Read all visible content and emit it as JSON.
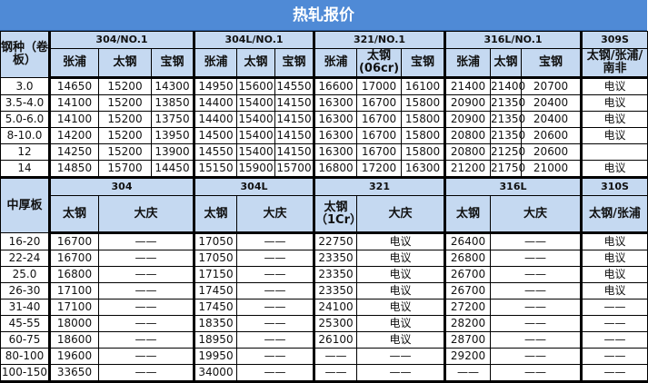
{
  "title": "热轧报价",
  "coil": {
    "corner": "钢种（卷板）",
    "groups": [
      {
        "label": "304/NO.1",
        "span": 3
      },
      {
        "label": "304L/NO.1",
        "span": 3
      },
      {
        "label": "321/NO.1",
        "span": 3
      },
      {
        "label": "316L/NO.1",
        "span": 3
      },
      {
        "label": "309S",
        "span": 1
      }
    ],
    "subheaders": [
      "张浦",
      "太钢",
      "宝钢",
      "张浦",
      "太钢",
      "宝钢",
      "张浦",
      "太钢(06cr)",
      "宝钢",
      "张浦",
      "太钢",
      "宝钢",
      "太钢/张浦/南非"
    ],
    "rows": [
      [
        "3.0",
        "14650",
        "15200",
        "14300",
        "14950",
        "15600",
        "14550",
        "16600",
        "17000",
        "16100",
        "21400",
        "21400",
        "20700",
        "电议"
      ],
      [
        "3.5-4.0",
        "14100",
        "15200",
        "13850",
        "14400",
        "15400",
        "14150",
        "16300",
        "16700",
        "15800",
        "20900",
        "21350",
        "20400",
        "电议"
      ],
      [
        "5.0-6.0",
        "14100",
        "15200",
        "13750",
        "14400",
        "15400",
        "14150",
        "16300",
        "16700",
        "15800",
        "20900",
        "21350",
        "20400",
        "电议"
      ],
      [
        "8-10.0",
        "14200",
        "15200",
        "13950",
        "14500",
        "15400",
        "14150",
        "16300",
        "16700",
        "15800",
        "20800",
        "21350",
        "20600",
        "电议"
      ],
      [
        "12",
        "14250",
        "15200",
        "13900",
        "14550",
        "15400",
        "14150",
        "16300",
        "16700",
        "15800",
        "20800",
        "21250",
        "20600",
        ""
      ],
      [
        "14",
        "14850",
        "15700",
        "14450",
        "15150",
        "15900",
        "15700",
        "16800",
        "17200",
        "16300",
        "21200",
        "21750",
        "21000",
        "电议"
      ]
    ]
  },
  "plate": {
    "corner": "中厚板",
    "groups": [
      {
        "label": "304",
        "span": 3
      },
      {
        "label": "304L",
        "span": 3
      },
      {
        "label": "321",
        "span": 3
      },
      {
        "label": "316L",
        "span": 3
      },
      {
        "label": "310S",
        "span": 1
      }
    ],
    "subheaders": [
      {
        "label": "太钢",
        "span": 1
      },
      {
        "label": "大庆",
        "span": 2
      },
      {
        "label": "太钢",
        "span": 1
      },
      {
        "label": "大庆",
        "span": 2
      },
      {
        "label": "太钢（1Cr）",
        "span": 1
      },
      {
        "label": "大庆",
        "span": 2
      },
      {
        "label": "太钢",
        "span": 1
      },
      {
        "label": "大庆",
        "span": 2
      },
      {
        "label": "太钢/张浦",
        "span": 1
      }
    ],
    "rows": [
      [
        "16-20",
        "16700",
        "——",
        "17050",
        "——",
        "22750",
        "电议",
        "26400",
        "——",
        "电议"
      ],
      [
        "22-24",
        "16700",
        "——",
        "17050",
        "——",
        "23350",
        "电议",
        "26800",
        "——",
        "电议"
      ],
      [
        "25.0",
        "16800",
        "——",
        "17150",
        "——",
        "23350",
        "电议",
        "26700",
        "——",
        "电议"
      ],
      [
        "26-30",
        "17100",
        "——",
        "17450",
        "——",
        "23350",
        "电议",
        "26700",
        "——",
        "电议"
      ],
      [
        "31-40",
        "17100",
        "——",
        "17450",
        "——",
        "24100",
        "电议",
        "27200",
        "——",
        "——"
      ],
      [
        "45-55",
        "18000",
        "——",
        "18350",
        "——",
        "25300",
        "电议",
        "28200",
        "——",
        "——"
      ],
      [
        "60-75",
        "18600",
        "——",
        "18950",
        "——",
        "26100",
        "电议",
        "28700",
        "——",
        "——"
      ],
      [
        "80-100",
        "19600",
        "——",
        "19950",
        "——",
        "——",
        "——",
        "29200",
        "——",
        "——"
      ],
      [
        "100-150",
        "33650",
        "——",
        "34000",
        "——",
        "——",
        "——",
        "——",
        "——",
        "——"
      ]
    ]
  },
  "colors": {
    "title_bg": "#4f8ad6",
    "header_bg": "#c5d9f1"
  }
}
